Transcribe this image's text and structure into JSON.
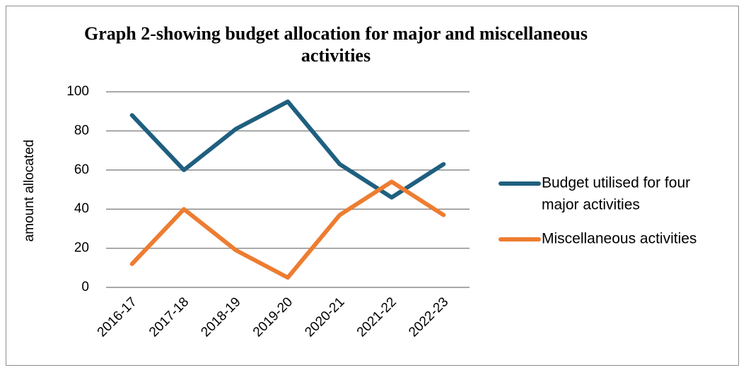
{
  "chart_data": {
    "type": "line",
    "title": "Graph 2-showing budget allocation for major and miscellaneous activities",
    "title_lines": [
      "Graph 2-showing budget allocation for major and miscellaneous",
      "activities"
    ],
    "xlabel": "",
    "ylabel": "amount allocated",
    "categories": [
      "2016-17",
      "2017-18",
      "2018-19",
      "2019-20",
      "2020-21",
      "2021-22",
      "2022-23"
    ],
    "ylim": [
      0,
      100
    ],
    "yticks": [
      0,
      20,
      40,
      60,
      80,
      100
    ],
    "grid": true,
    "legend": "right",
    "series": [
      {
        "name": "Budget utilised for four major activities",
        "legend_lines": [
          "Budget utilised for four",
          "major activities"
        ],
        "color": "#1f5f7f",
        "values": [
          88,
          60,
          81,
          95,
          63,
          46,
          63
        ]
      },
      {
        "name": "Miscellaneous activities",
        "legend_lines": [
          "Miscellaneous activities"
        ],
        "color": "#ed7d31",
        "values": [
          12,
          40,
          19,
          5,
          37,
          54,
          37
        ]
      }
    ]
  }
}
